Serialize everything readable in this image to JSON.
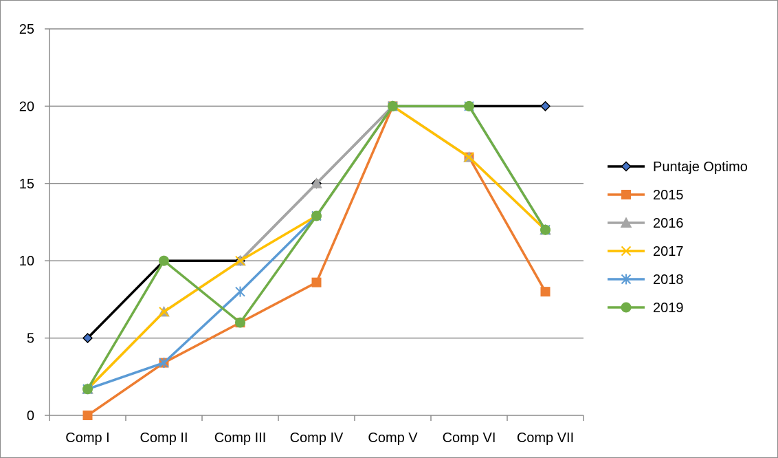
{
  "chart_data": {
    "type": "line",
    "title": "",
    "xlabel": "",
    "ylabel": "",
    "categories": [
      "Comp I",
      "Comp II",
      "Comp III",
      "Comp IV",
      "Comp V",
      "Comp VI",
      "Comp VII"
    ],
    "ylim": [
      0,
      25
    ],
    "yticks": [
      "0",
      "5",
      "10",
      "15",
      "20",
      "25"
    ],
    "grid": "horizontal",
    "legend_position": "right",
    "series": [
      {
        "name": "Puntaje Optimo",
        "color": "#000000",
        "marker": "diamond",
        "marker_fill": "#4472c4",
        "values": [
          5,
          10,
          10,
          15,
          20,
          20,
          20
        ]
      },
      {
        "name": "2015",
        "color": "#ed7d31",
        "marker": "square",
        "marker_fill": "#ed7d31",
        "values": [
          0,
          3.4,
          6,
          8.6,
          20,
          16.7,
          8
        ]
      },
      {
        "name": "2016",
        "color": "#a5a5a5",
        "marker": "triangle",
        "marker_fill": "#a5a5a5",
        "values": [
          1.7,
          6.7,
          10,
          15,
          20,
          16.7,
          12
        ]
      },
      {
        "name": "2017",
        "color": "#ffc000",
        "marker": "x",
        "marker_fill": "#ffc000",
        "values": [
          1.7,
          6.7,
          10,
          12.9,
          20,
          16.7,
          12
        ]
      },
      {
        "name": "2018",
        "color": "#5b9bd5",
        "marker": "star",
        "marker_fill": "#5b9bd5",
        "values": [
          1.7,
          3.4,
          8,
          12.9,
          20,
          20,
          12
        ]
      },
      {
        "name": "2019",
        "color": "#70ad47",
        "marker": "circle",
        "marker_fill": "#70ad47",
        "values": [
          1.7,
          10,
          6,
          12.9,
          20,
          20,
          12
        ]
      }
    ]
  }
}
